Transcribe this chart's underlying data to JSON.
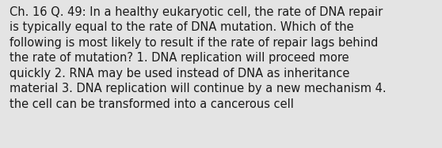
{
  "lines": [
    "Ch. 16 Q. 49: In a healthy eukaryotic cell, the rate of DNA repair",
    "is typically equal to the rate of DNA mutation. Which of the",
    "following is most likely to result if the rate of repair lags behind",
    "the rate of mutation? 1. DNA replication will proceed more",
    "quickly 2. RNA may be used instead of DNA as inheritance",
    "material 3. DNA replication will continue by a new mechanism 4.",
    "the cell can be transformed into a cancerous cell"
  ],
  "background_color": "#e4e4e4",
  "text_color": "#1a1a1a",
  "font_size": 10.5,
  "font_family": "DejaVu Sans",
  "fig_width": 5.58,
  "fig_height": 1.88,
  "dpi": 100
}
